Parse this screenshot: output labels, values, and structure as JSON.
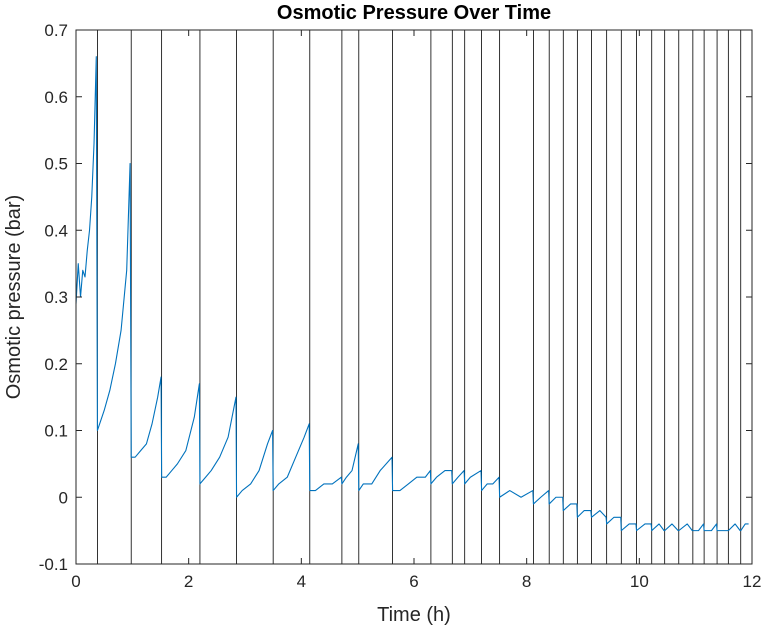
{
  "chart_data": {
    "type": "line",
    "title": "Osmotic Pressure Over Time",
    "xlabel": "Time (h)",
    "ylabel": "Osmotic pressure (bar)",
    "xlim": [
      0,
      12
    ],
    "ylim": [
      -0.1,
      0.7
    ],
    "xticks": [
      0,
      2,
      4,
      6,
      8,
      10,
      12
    ],
    "yticks": [
      -0.1,
      0,
      0.1,
      0.2,
      0.3,
      0.4,
      0.5,
      0.6,
      0.7
    ],
    "grid": false,
    "legend": "none",
    "line_color": "#0072BD",
    "marker_line_color": "#000000",
    "vertical_lines_x": [
      0.38,
      0.98,
      1.52,
      2.2,
      2.85,
      3.5,
      4.15,
      4.72,
      5.02,
      5.62,
      6.3,
      6.68,
      6.9,
      7.2,
      7.52,
      8.12,
      8.4,
      8.65,
      8.9,
      9.15,
      9.42,
      9.68,
      9.95,
      10.22,
      10.45,
      10.7,
      10.95,
      11.15,
      11.38,
      11.58,
      11.8
    ],
    "series": [
      {
        "points": [
          [
            0.0,
            0.29
          ],
          [
            0.04,
            0.35
          ],
          [
            0.08,
            0.3
          ],
          [
            0.12,
            0.34
          ],
          [
            0.16,
            0.33
          ],
          [
            0.2,
            0.37
          ],
          [
            0.24,
            0.4
          ],
          [
            0.28,
            0.45
          ],
          [
            0.32,
            0.53
          ],
          [
            0.36,
            0.66
          ],
          [
            0.38,
            0.1
          ],
          [
            0.42,
            0.11
          ],
          [
            0.5,
            0.13
          ],
          [
            0.6,
            0.16
          ],
          [
            0.7,
            0.2
          ],
          [
            0.8,
            0.25
          ],
          [
            0.9,
            0.34
          ],
          [
            0.96,
            0.5
          ],
          [
            0.98,
            0.06
          ],
          [
            1.05,
            0.06
          ],
          [
            1.15,
            0.07
          ],
          [
            1.25,
            0.08
          ],
          [
            1.35,
            0.11
          ],
          [
            1.45,
            0.15
          ],
          [
            1.51,
            0.18
          ],
          [
            1.52,
            0.03
          ],
          [
            1.6,
            0.03
          ],
          [
            1.7,
            0.04
          ],
          [
            1.8,
            0.05
          ],
          [
            1.95,
            0.07
          ],
          [
            2.1,
            0.12
          ],
          [
            2.19,
            0.17
          ],
          [
            2.2,
            0.02
          ],
          [
            2.3,
            0.03
          ],
          [
            2.4,
            0.04
          ],
          [
            2.55,
            0.06
          ],
          [
            2.7,
            0.09
          ],
          [
            2.84,
            0.15
          ],
          [
            2.85,
            0.0
          ],
          [
            2.95,
            0.01
          ],
          [
            3.1,
            0.02
          ],
          [
            3.25,
            0.04
          ],
          [
            3.4,
            0.08
          ],
          [
            3.49,
            0.1
          ],
          [
            3.5,
            0.01
          ],
          [
            3.6,
            0.02
          ],
          [
            3.75,
            0.03
          ],
          [
            3.9,
            0.06
          ],
          [
            4.05,
            0.09
          ],
          [
            4.14,
            0.11
          ],
          [
            4.15,
            0.01
          ],
          [
            4.25,
            0.01
          ],
          [
            4.4,
            0.02
          ],
          [
            4.55,
            0.02
          ],
          [
            4.71,
            0.03
          ],
          [
            4.72,
            0.02
          ],
          [
            4.8,
            0.03
          ],
          [
            4.9,
            0.04
          ],
          [
            5.01,
            0.08
          ],
          [
            5.02,
            0.01
          ],
          [
            5.1,
            0.02
          ],
          [
            5.25,
            0.02
          ],
          [
            5.4,
            0.04
          ],
          [
            5.61,
            0.06
          ],
          [
            5.62,
            0.01
          ],
          [
            5.75,
            0.01
          ],
          [
            5.9,
            0.02
          ],
          [
            6.05,
            0.03
          ],
          [
            6.2,
            0.03
          ],
          [
            6.29,
            0.04
          ],
          [
            6.3,
            0.02
          ],
          [
            6.4,
            0.03
          ],
          [
            6.55,
            0.04
          ],
          [
            6.67,
            0.04
          ],
          [
            6.68,
            0.02
          ],
          [
            6.78,
            0.03
          ],
          [
            6.89,
            0.04
          ],
          [
            6.9,
            0.02
          ],
          [
            7.0,
            0.03
          ],
          [
            7.19,
            0.04
          ],
          [
            7.2,
            0.01
          ],
          [
            7.3,
            0.02
          ],
          [
            7.4,
            0.02
          ],
          [
            7.51,
            0.03
          ],
          [
            7.52,
            0.0
          ],
          [
            7.7,
            0.01
          ],
          [
            7.9,
            0.0
          ],
          [
            8.11,
            0.01
          ],
          [
            8.12,
            -0.01
          ],
          [
            8.25,
            0.0
          ],
          [
            8.39,
            0.01
          ],
          [
            8.4,
            -0.01
          ],
          [
            8.52,
            0.0
          ],
          [
            8.64,
            0.0
          ],
          [
            8.65,
            -0.02
          ],
          [
            8.78,
            -0.01
          ],
          [
            8.89,
            -0.01
          ],
          [
            8.9,
            -0.03
          ],
          [
            9.02,
            -0.02
          ],
          [
            9.14,
            -0.02
          ],
          [
            9.15,
            -0.03
          ],
          [
            9.3,
            -0.02
          ],
          [
            9.41,
            -0.03
          ],
          [
            9.42,
            -0.04
          ],
          [
            9.55,
            -0.03
          ],
          [
            9.67,
            -0.03
          ],
          [
            9.68,
            -0.05
          ],
          [
            9.82,
            -0.04
          ],
          [
            9.94,
            -0.04
          ],
          [
            9.95,
            -0.05
          ],
          [
            10.1,
            -0.04
          ],
          [
            10.21,
            -0.04
          ],
          [
            10.22,
            -0.05
          ],
          [
            10.35,
            -0.04
          ],
          [
            10.44,
            -0.05
          ],
          [
            10.45,
            -0.05
          ],
          [
            10.58,
            -0.04
          ],
          [
            10.69,
            -0.05
          ],
          [
            10.7,
            -0.05
          ],
          [
            10.85,
            -0.04
          ],
          [
            10.94,
            -0.05
          ],
          [
            10.95,
            -0.05
          ],
          [
            11.05,
            -0.05
          ],
          [
            11.14,
            -0.04
          ],
          [
            11.15,
            -0.05
          ],
          [
            11.28,
            -0.05
          ],
          [
            11.37,
            -0.04
          ],
          [
            11.38,
            -0.05
          ],
          [
            11.48,
            -0.05
          ],
          [
            11.57,
            -0.05
          ],
          [
            11.58,
            -0.05
          ],
          [
            11.7,
            -0.04
          ],
          [
            11.79,
            -0.05
          ],
          [
            11.8,
            -0.05
          ],
          [
            11.88,
            -0.04
          ],
          [
            11.94,
            -0.04
          ]
        ]
      }
    ]
  }
}
